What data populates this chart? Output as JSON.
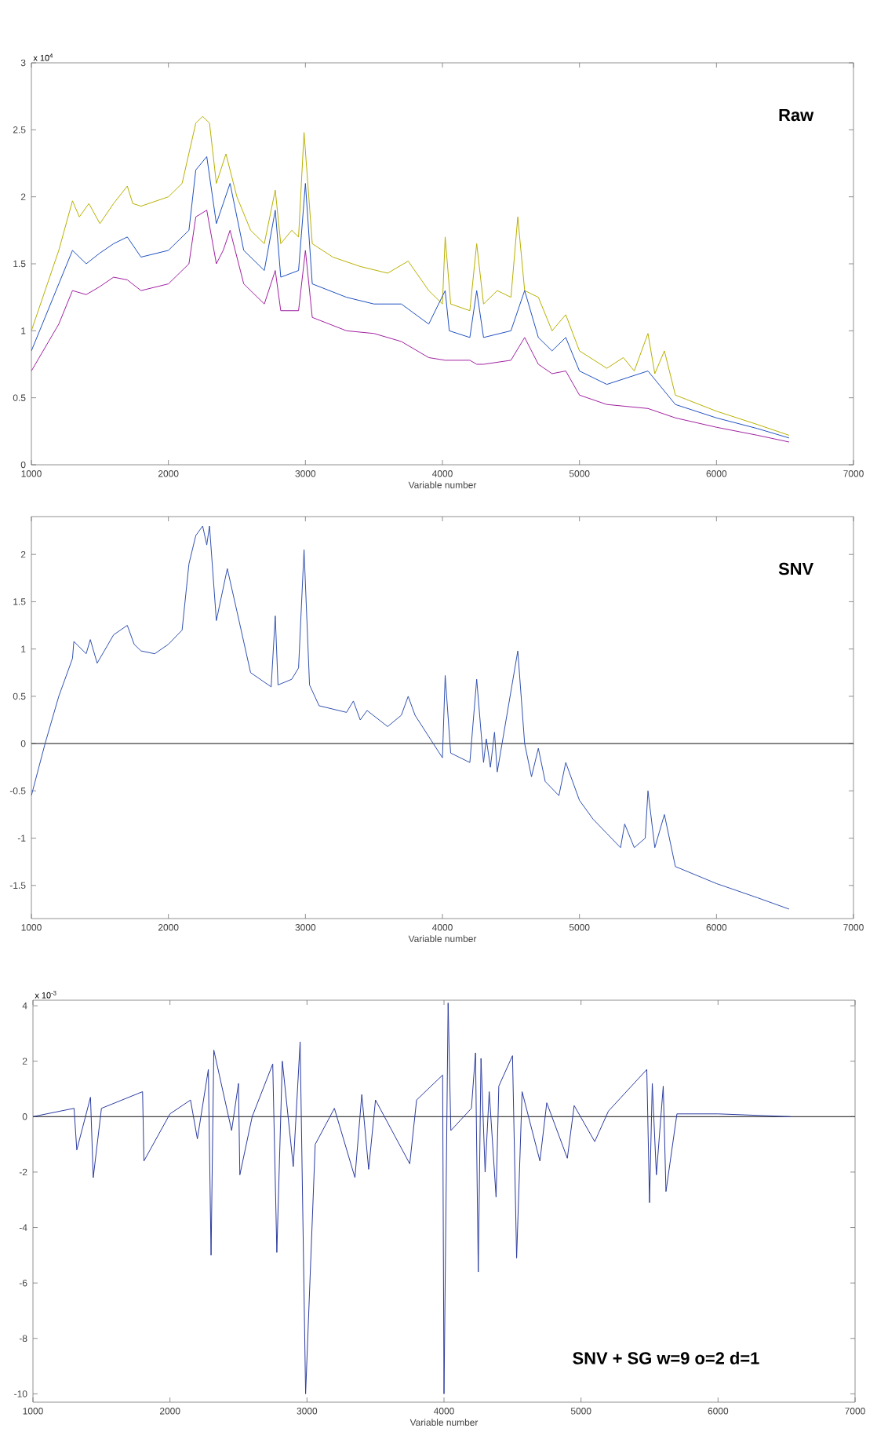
{
  "chart_data": [
    {
      "type": "line",
      "xlabel": "Variable number",
      "xlim": [
        1000,
        7000
      ],
      "ylim": [
        0,
        3
      ],
      "xticks": [
        1000,
        2000,
        3000,
        4000,
        5000,
        6000,
        7000
      ],
      "yticks": [
        0,
        0.5,
        1,
        1.5,
        2,
        2.5,
        3
      ],
      "annotations": [
        "Raw",
        "x 10$^{4}$"
      ],
      "series": [
        {
          "color": "#b8b000",
          "x": [
            1000,
            1200,
            1300,
            1350,
            1420,
            1500,
            1600,
            1700,
            1740,
            1800,
            2000,
            2100,
            2200,
            2250,
            2300,
            2350,
            2420,
            2500,
            2600,
            2700,
            2780,
            2820,
            2900,
            2950,
            2990,
            3050,
            3200,
            3400,
            3600,
            3750,
            3900,
            4000,
            4020,
            4060,
            4200,
            4250,
            4300,
            4400,
            4500,
            4550,
            4600,
            4700,
            4800,
            4900,
            5000,
            5200,
            5320,
            5400,
            5500,
            5550,
            5620,
            5700,
            6000,
            6300,
            6530
          ],
          "values": [
            1.0,
            1.6,
            1.97,
            1.85,
            1.95,
            1.8,
            1.95,
            2.08,
            1.95,
            1.93,
            2.0,
            2.1,
            2.55,
            2.6,
            2.55,
            2.1,
            2.32,
            2.0,
            1.75,
            1.65,
            2.05,
            1.65,
            1.75,
            1.7,
            2.48,
            1.65,
            1.55,
            1.48,
            1.43,
            1.52,
            1.3,
            1.2,
            1.7,
            1.2,
            1.15,
            1.65,
            1.2,
            1.3,
            1.25,
            1.85,
            1.3,
            1.25,
            1.0,
            1.12,
            0.85,
            0.72,
            0.8,
            0.7,
            0.98,
            0.68,
            0.85,
            0.52,
            0.4,
            0.3,
            0.22
          ]
        },
        {
          "color": "#2050c0",
          "x": [
            1000,
            1200,
            1300,
            1400,
            1500,
            1600,
            1700,
            1800,
            2000,
            2150,
            2200,
            2280,
            2350,
            2400,
            2450,
            2550,
            2700,
            2780,
            2820,
            2950,
            3000,
            3050,
            3300,
            3500,
            3700,
            3900,
            4020,
            4050,
            4200,
            4250,
            4300,
            4500,
            4600,
            4700,
            4800,
            4900,
            5000,
            5200,
            5500,
            5700,
            6000,
            6300,
            6530
          ],
          "values": [
            0.85,
            1.35,
            1.6,
            1.5,
            1.58,
            1.65,
            1.7,
            1.55,
            1.6,
            1.75,
            2.2,
            2.3,
            1.8,
            1.95,
            2.1,
            1.6,
            1.45,
            1.9,
            1.4,
            1.45,
            2.1,
            1.35,
            1.25,
            1.2,
            1.2,
            1.05,
            1.3,
            1.0,
            0.95,
            1.3,
            0.95,
            1.0,
            1.3,
            0.95,
            0.85,
            0.95,
            0.7,
            0.6,
            0.7,
            0.45,
            0.35,
            0.27,
            0.2
          ]
        },
        {
          "color": "#a020a0",
          "x": [
            1000,
            1200,
            1300,
            1400,
            1500,
            1600,
            1700,
            1800,
            2000,
            2150,
            2200,
            2280,
            2350,
            2400,
            2450,
            2550,
            2700,
            2780,
            2820,
            2950,
            3000,
            3050,
            3300,
            3500,
            3700,
            3900,
            4020,
            4050,
            4200,
            4250,
            4300,
            4500,
            4600,
            4700,
            4800,
            4900,
            5000,
            5200,
            5500,
            5700,
            6000,
            6300,
            6530
          ],
          "values": [
            0.7,
            1.05,
            1.3,
            1.27,
            1.33,
            1.4,
            1.38,
            1.3,
            1.35,
            1.5,
            1.85,
            1.9,
            1.5,
            1.6,
            1.75,
            1.35,
            1.2,
            1.45,
            1.15,
            1.15,
            1.6,
            1.1,
            1.0,
            0.98,
            0.92,
            0.8,
            0.78,
            0.78,
            0.78,
            0.75,
            0.75,
            0.78,
            0.95,
            0.75,
            0.68,
            0.7,
            0.52,
            0.45,
            0.42,
            0.35,
            0.28,
            0.22,
            0.17
          ]
        }
      ]
    },
    {
      "type": "line",
      "xlabel": "Variable number",
      "xlim": [
        1000,
        7000
      ],
      "ylim": [
        -1.85,
        2.4
      ],
      "xticks": [
        1000,
        2000,
        3000,
        4000,
        5000,
        6000,
        7000
      ],
      "yticks": [
        -1.5,
        -1,
        -0.5,
        0,
        0.5,
        1,
        1.5,
        2
      ],
      "annotations": [
        "SNV"
      ],
      "ref_lines": [
        {
          "axis": "y",
          "value": 0,
          "color": "#404040"
        }
      ],
      "series": [
        {
          "color": "#3050b0",
          "x": [
            1000,
            1100,
            1200,
            1300,
            1310,
            1400,
            1430,
            1480,
            1600,
            1700,
            1750,
            1800,
            1900,
            2000,
            2100,
            2150,
            2200,
            2250,
            2280,
            2300,
            2350,
            2430,
            2500,
            2600,
            2750,
            2780,
            2800,
            2900,
            2950,
            2990,
            3030,
            3100,
            3300,
            3350,
            3400,
            3450,
            3600,
            3700,
            3750,
            3800,
            4000,
            4020,
            4060,
            4200,
            4250,
            4300,
            4320,
            4350,
            4380,
            4400,
            4550,
            4600,
            4650,
            4700,
            4750,
            4850,
            4900,
            5000,
            5100,
            5200,
            5300,
            5330,
            5400,
            5480,
            5500,
            5550,
            5620,
            5700,
            6000,
            6300,
            6530
          ],
          "values": [
            -0.55,
            0.0,
            0.5,
            0.9,
            1.08,
            0.95,
            1.1,
            0.85,
            1.15,
            1.25,
            1.05,
            0.98,
            0.95,
            1.05,
            1.2,
            1.9,
            2.2,
            2.3,
            2.1,
            2.3,
            1.3,
            1.85,
            1.4,
            0.75,
            0.6,
            1.35,
            0.62,
            0.68,
            0.8,
            2.05,
            0.62,
            0.4,
            0.33,
            0.45,
            0.25,
            0.35,
            0.18,
            0.3,
            0.5,
            0.3,
            -0.15,
            0.72,
            -0.1,
            -0.2,
            0.68,
            -0.2,
            0.05,
            -0.25,
            0.12,
            -0.3,
            0.98,
            0.0,
            -0.35,
            -0.05,
            -0.4,
            -0.55,
            -0.2,
            -0.6,
            -0.8,
            -0.95,
            -1.1,
            -0.85,
            -1.1,
            -1.0,
            -0.5,
            -1.1,
            -0.75,
            -1.3,
            -1.48,
            -1.63,
            -1.75
          ]
        }
      ]
    },
    {
      "type": "line",
      "xlabel": "Variable number",
      "xlim": [
        1000,
        7000
      ],
      "ylim": [
        -10.3,
        4.2
      ],
      "xticks": [
        1000,
        2000,
        3000,
        4000,
        5000,
        6000,
        7000
      ],
      "yticks": [
        -10,
        -8,
        -6,
        -4,
        -2,
        0,
        2,
        4
      ],
      "annotations": [
        "SNV + SG w=9 o=2 d=1",
        "x 10$^{-3}$"
      ],
      "ref_lines": [
        {
          "axis": "y",
          "value": 0,
          "color": "#404040"
        }
      ],
      "series": [
        {
          "color": "#2a3aa0",
          "x": [
            1000,
            1300,
            1320,
            1420,
            1440,
            1500,
            1800,
            1810,
            2000,
            2150,
            2200,
            2280,
            2300,
            2320,
            2450,
            2500,
            2510,
            2600,
            2750,
            2780,
            2820,
            2900,
            2950,
            2990,
            3010,
            3060,
            3200,
            3350,
            3400,
            3450,
            3500,
            3750,
            3800,
            3990,
            4000,
            4010,
            4030,
            4050,
            4200,
            4230,
            4250,
            4270,
            4300,
            4330,
            4380,
            4400,
            4500,
            4530,
            4570,
            4700,
            4750,
            4900,
            4950,
            5100,
            5200,
            5480,
            5500,
            5520,
            5550,
            5600,
            5620,
            5700,
            6000,
            6530
          ],
          "values": [
            0,
            0.3,
            -1.2,
            0.7,
            -2.2,
            0.3,
            0.9,
            -1.6,
            0.1,
            0.6,
            -0.8,
            1.7,
            -5.0,
            2.4,
            -0.5,
            1.2,
            -2.1,
            0,
            1.9,
            -4.9,
            2.0,
            -1.8,
            2.7,
            -10.0,
            null,
            -1.0,
            0.3,
            -2.2,
            0.8,
            -1.9,
            0.6,
            -1.7,
            0.6,
            1.5,
            -10.0,
            null,
            4.1,
            -0.5,
            0.3,
            2.3,
            -5.6,
            2.1,
            -2.0,
            0.9,
            -2.9,
            1.1,
            2.2,
            -5.1,
            0.9,
            -1.6,
            0.5,
            -1.5,
            0.4,
            -0.9,
            0.2,
            1.7,
            -3.1,
            1.2,
            -2.1,
            1.1,
            -2.7,
            0.1,
            0.1,
            0
          ]
        }
      ]
    }
  ]
}
